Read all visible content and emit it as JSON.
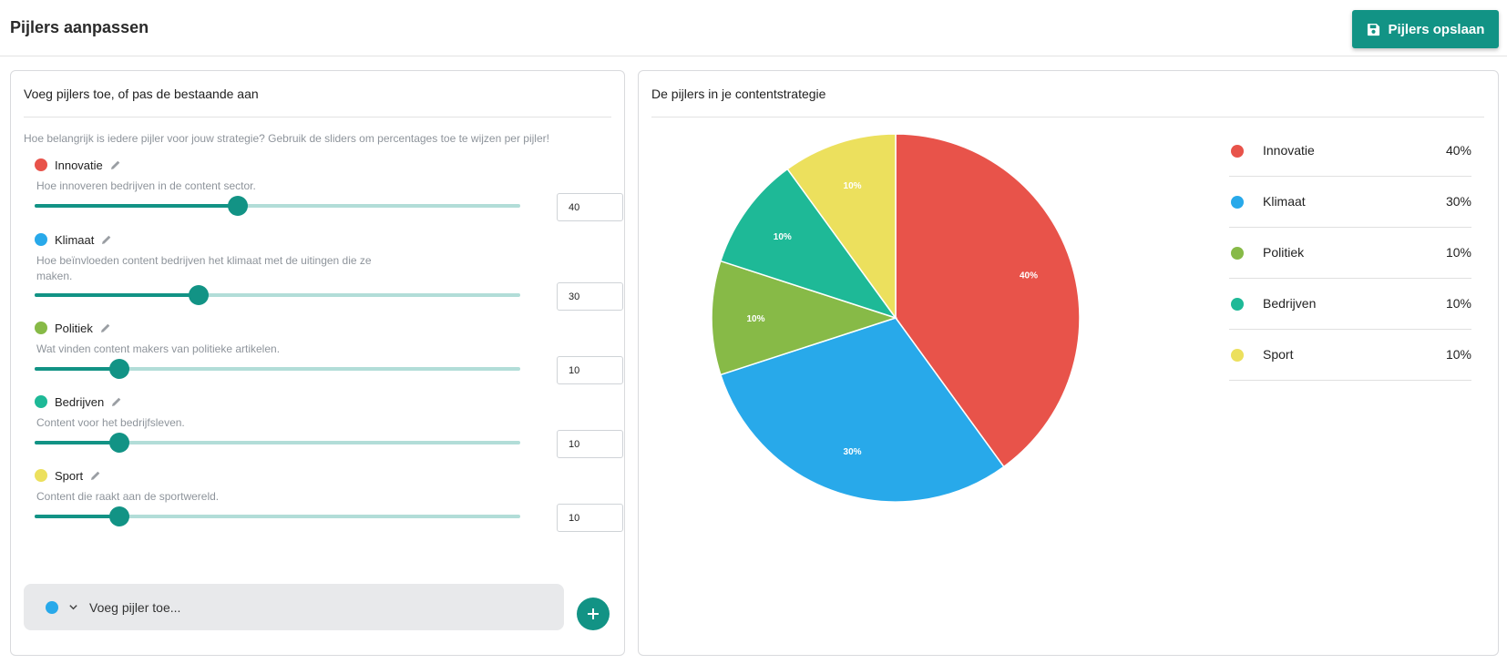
{
  "page": {
    "title": "Pijlers aanpassen",
    "save_label": "Pijlers opslaan"
  },
  "editor": {
    "title": "Voeg pijlers toe, of pas de bestaande aan",
    "intro": "Hoe belangrijk is iedere pijler voor jouw strategie? Gebruik de sliders om percentages toe te wijzen per pijler!",
    "pillars": [
      {
        "name": "Innovatie",
        "description": "Hoe innoveren bedrijven in de content sector.",
        "value": "40",
        "color": "#e8534a"
      },
      {
        "name": "Klimaat",
        "description": "Hoe beïnvloeden content bedrijven het klimaat met de uitingen die ze maken.",
        "value": "30",
        "color": "#28a9ea"
      },
      {
        "name": "Politiek",
        "description": "Wat vinden content makers van politieke artikelen.",
        "value": "10",
        "color": "#87ba47"
      },
      {
        "name": "Bedrijven",
        "description": "Content voor het bedrijfsleven.",
        "value": "10",
        "color": "#1eb997"
      },
      {
        "name": "Sport",
        "description": "Content die raakt aan de sportwereld.",
        "value": "10",
        "color": "#ece05d"
      }
    ],
    "slider_max": 100,
    "add_pillar_placeholder": "Voeg pijler toe...",
    "add_pillar_color": "#28a9ea"
  },
  "chart_panel": {
    "title": "De pijlers in je contentstrategie"
  },
  "chart_data": {
    "type": "pie",
    "title": "",
    "categories": [
      "Innovatie",
      "Klimaat",
      "Politiek",
      "Bedrijven",
      "Sport"
    ],
    "values": [
      40,
      30,
      10,
      10,
      10
    ],
    "labels": [
      "40%",
      "30%",
      "10%",
      "10%",
      "10%"
    ],
    "colors": [
      "#e8534a",
      "#28a9ea",
      "#87ba47",
      "#1eb997",
      "#ece05d"
    ],
    "legend_placement": "right"
  },
  "icons": {
    "save": "floppy-disk-icon",
    "edit": "pencil-icon",
    "chevron": "chevron-down-icon",
    "add": "plus-icon"
  },
  "theme": {
    "accent": "#129385",
    "track": "#b2ddd8"
  }
}
